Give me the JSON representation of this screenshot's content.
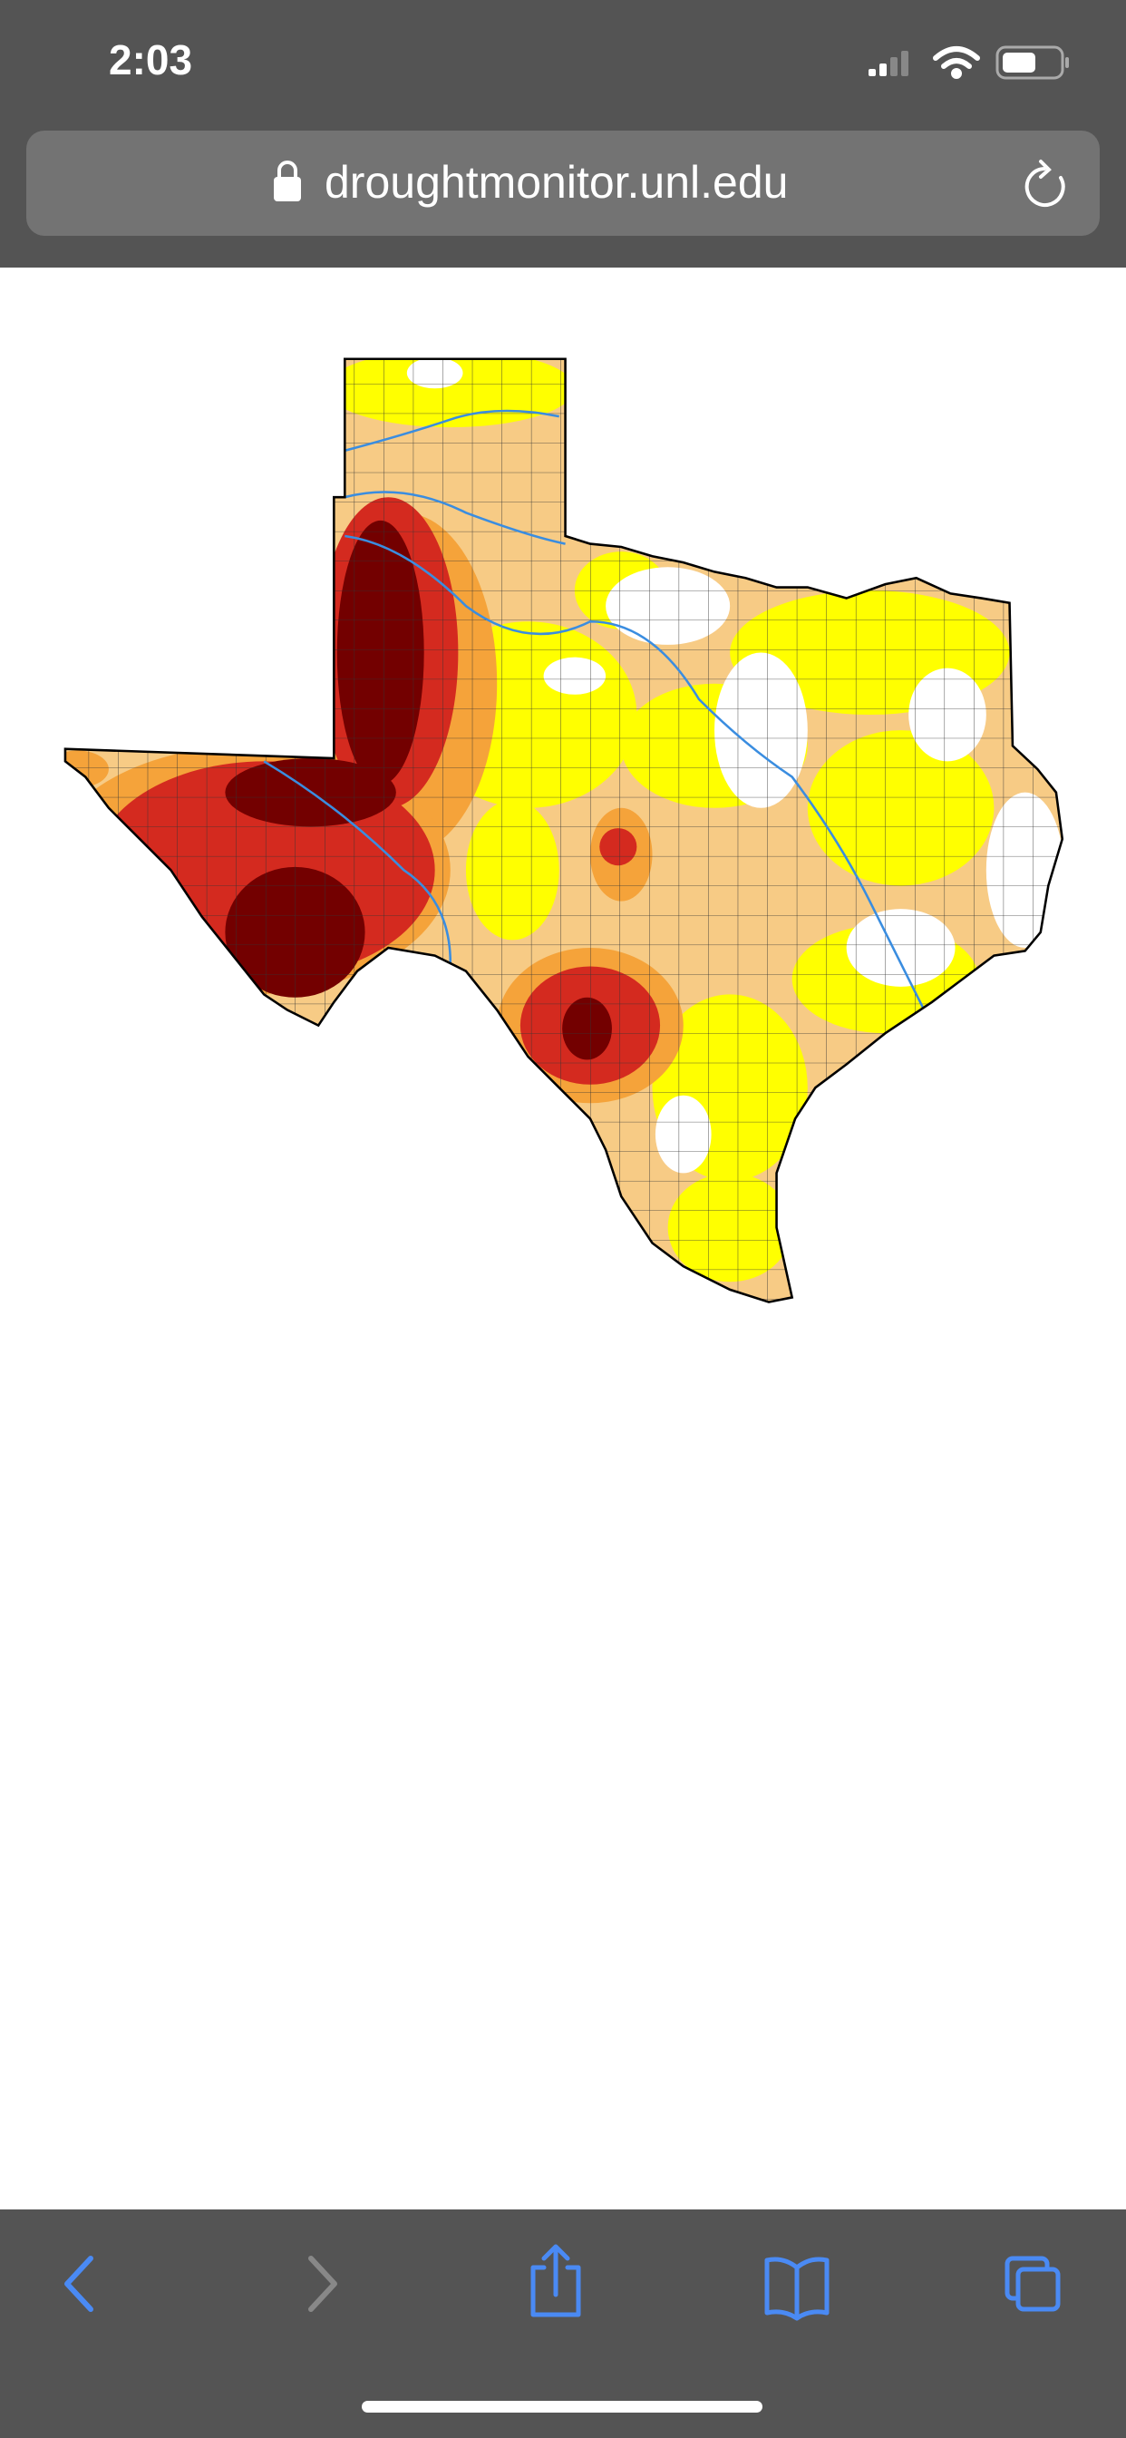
{
  "status_bar": {
    "time": "2:03"
  },
  "address_bar": {
    "url": "droughtmonitor.unl.edu"
  }
}
